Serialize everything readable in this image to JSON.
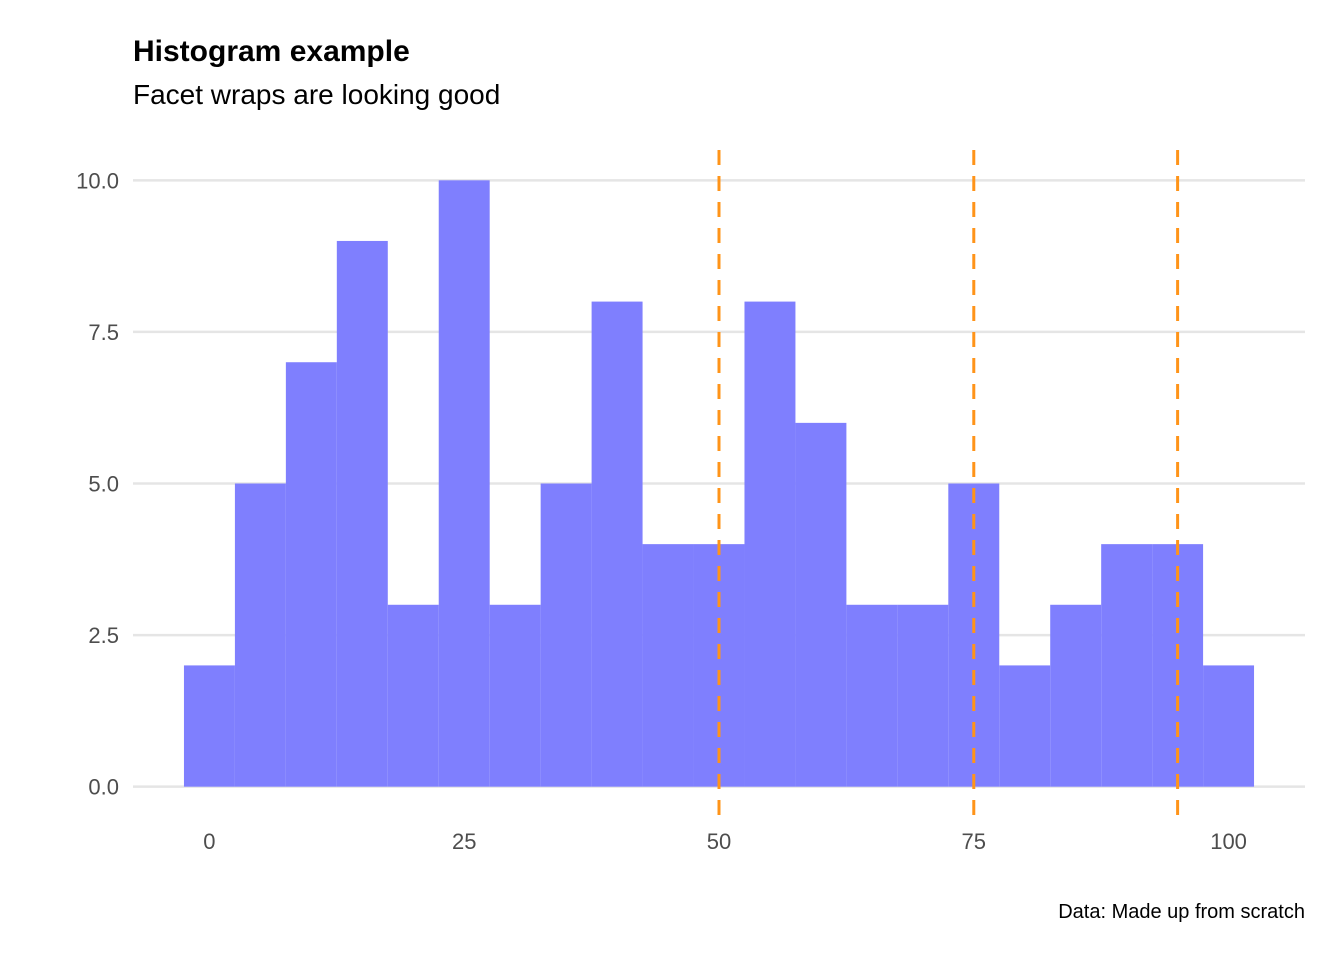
{
  "chart_data": {
    "type": "bar",
    "title": "Histogram example",
    "subtitle": "Facet wraps are looking good",
    "caption": "Data: Made up from scratch",
    "xlabel": "",
    "ylabel": "",
    "bin_width": 5,
    "bin_centers": [
      0,
      5,
      10,
      15,
      20,
      25,
      30,
      35,
      40,
      45,
      50,
      55,
      60,
      65,
      70,
      75,
      80,
      85,
      90,
      95,
      100
    ],
    "counts": [
      2,
      5,
      7,
      9,
      3,
      10,
      3,
      5,
      8,
      4,
      4,
      8,
      6,
      3,
      3,
      5,
      2,
      3,
      4,
      4,
      2
    ],
    "xlim": [
      -7.5,
      107.5
    ],
    "ylim": [
      -0.5,
      10.5
    ],
    "x_ticks": [
      0,
      25,
      50,
      75,
      100
    ],
    "x_tick_labels": [
      "0",
      "25",
      "50",
      "75",
      "100"
    ],
    "y_ticks": [
      0,
      2.5,
      5,
      7.5,
      10
    ],
    "y_tick_labels": [
      "0.0",
      "2.5",
      "5.0",
      "7.5",
      "10.0"
    ],
    "vlines": [
      50,
      75,
      95
    ],
    "bar_color": "#7f7ffe",
    "vline_color": "#ff9419",
    "grid": true
  }
}
